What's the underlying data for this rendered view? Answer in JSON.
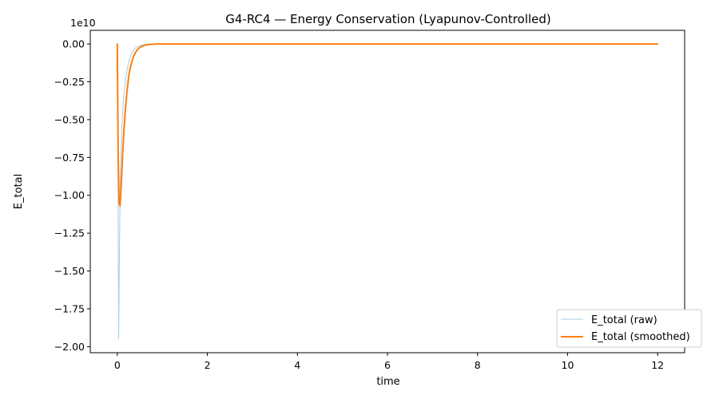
{
  "chart_data": {
    "type": "line",
    "title": "G4-RC4 — Energy Conservation (Lyapunov-Controlled)",
    "xlabel": "time",
    "ylabel": "E_total",
    "y_offset_text": "1e10",
    "y_scale": 10000000000,
    "xlim": [
      -0.6,
      12.6
    ],
    "ylim": [
      -2.04,
      0.09
    ],
    "xticks": [
      0,
      2,
      4,
      6,
      8,
      10,
      12
    ],
    "xtick_labels": [
      "0",
      "2",
      "4",
      "6",
      "8",
      "10",
      "12"
    ],
    "yticks": [
      0.0,
      -0.25,
      -0.5,
      -0.75,
      -1.0,
      -1.25,
      -1.5,
      -1.75,
      -2.0
    ],
    "ytick_labels": [
      "0.00",
      "−0.25",
      "−0.50",
      "−0.75",
      "−1.00",
      "−1.25",
      "−1.50",
      "−1.75",
      "−2.00"
    ],
    "grid": false,
    "legend_position": "lower-right",
    "series": [
      {
        "name": "E_total (raw)",
        "color": "#a6cee3",
        "x": [
          0,
          0.01,
          0.02,
          0.03,
          0.05,
          0.07,
          0.1,
          0.13,
          0.16,
          0.2,
          0.25,
          0.3,
          0.35,
          0.4,
          0.5,
          0.6,
          0.7,
          0.8,
          1.0,
          2.0,
          4.0,
          6.0,
          8.0,
          10.0,
          12.0
        ],
        "y": [
          0,
          -0.3,
          -1.2,
          -1.95,
          -1.3,
          -0.85,
          -0.56,
          -0.4,
          -0.3,
          -0.2,
          -0.12,
          -0.075,
          -0.045,
          -0.027,
          -0.01,
          -0.004,
          -0.0015,
          -0.0005,
          0,
          0,
          0,
          0,
          0,
          0,
          0
        ]
      },
      {
        "name": "E_total (smoothed)",
        "color": "#ff7f0e",
        "x": [
          0,
          0.02,
          0.04,
          0.06,
          0.08,
          0.1,
          0.12,
          0.15,
          0.18,
          0.22,
          0.26,
          0.3,
          0.35,
          0.4,
          0.45,
          0.5,
          0.6,
          0.7,
          0.8,
          0.9,
          1.0,
          2.0,
          4.0,
          6.0,
          8.0,
          10.0,
          12.0
        ],
        "y": [
          0,
          -0.75,
          -1.05,
          -1.07,
          -0.98,
          -0.85,
          -0.72,
          -0.56,
          -0.43,
          -0.3,
          -0.2,
          -0.14,
          -0.09,
          -0.058,
          -0.037,
          -0.023,
          -0.009,
          -0.0035,
          -0.0014,
          -0.0005,
          -0.0002,
          0,
          0,
          0,
          0,
          0,
          0
        ]
      }
    ]
  }
}
